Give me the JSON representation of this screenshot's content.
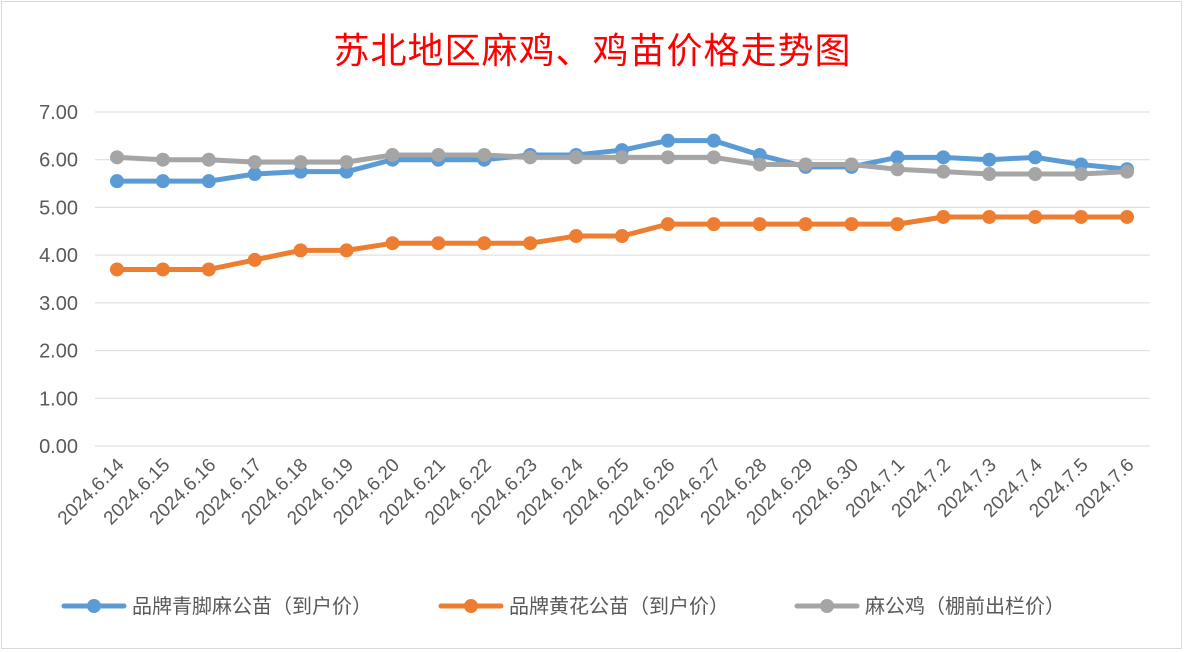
{
  "chart_data": {
    "type": "line",
    "title": "苏北地区麻鸡、鸡苗价格走势图",
    "categories": [
      "2024.6.14",
      "2024.6.15",
      "2024.6.16",
      "2024.6.17",
      "2024.6.18",
      "2024.6.19",
      "2024.6.20",
      "2024.6.21",
      "2024.6.22",
      "2024.6.23",
      "2024.6.24",
      "2024.6.25",
      "2024.6.26",
      "2024.6.27",
      "2024.6.28",
      "2024.6.29",
      "2024.6.30",
      "2024.7.1",
      "2024.7.2",
      "2024.7.3",
      "2024.7.4",
      "2024.7.5",
      "2024.7.6"
    ],
    "yticks": [
      "0.00",
      "1.00",
      "2.00",
      "3.00",
      "4.00",
      "5.00",
      "6.00",
      "7.00"
    ],
    "ylim": [
      0,
      7
    ],
    "grid": true,
    "legend_position": "bottom",
    "series": [
      {
        "name": "品牌青脚麻公苗（到户价）",
        "color": "#5b9bd5",
        "values": [
          5.55,
          5.55,
          5.55,
          5.7,
          5.75,
          5.75,
          6.0,
          6.0,
          6.0,
          6.1,
          6.1,
          6.2,
          6.4,
          6.4,
          6.1,
          5.85,
          5.85,
          6.05,
          6.05,
          6.0,
          6.05,
          5.9,
          5.8
        ]
      },
      {
        "name": "品牌黄花公苗（到户价）",
        "color": "#ed7d31",
        "values": [
          3.7,
          3.7,
          3.7,
          3.9,
          4.1,
          4.1,
          4.25,
          4.25,
          4.25,
          4.25,
          4.4,
          4.4,
          4.65,
          4.65,
          4.65,
          4.65,
          4.65,
          4.65,
          4.8,
          4.8,
          4.8,
          4.8,
          4.8
        ]
      },
      {
        "name": "麻公鸡（棚前出栏价）",
        "color": "#a5a5a5",
        "values": [
          6.05,
          6.0,
          6.0,
          5.95,
          5.95,
          5.95,
          6.1,
          6.1,
          6.1,
          6.05,
          6.05,
          6.05,
          6.05,
          6.05,
          5.9,
          5.9,
          5.9,
          5.8,
          5.75,
          5.7,
          5.7,
          5.7,
          5.75
        ]
      }
    ]
  }
}
